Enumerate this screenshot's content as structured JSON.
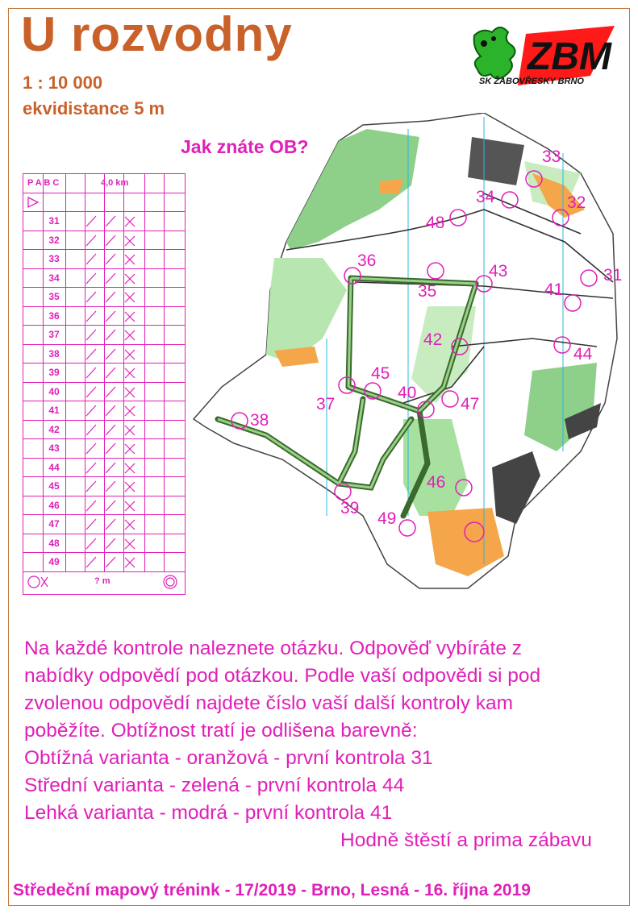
{
  "header": {
    "title": "U rozvodny",
    "scale": "1 : 10 000",
    "contour_interval": "ekvidistance 5 m",
    "question": "Jak znáte OB?"
  },
  "logo": {
    "text": "ZBM",
    "club": "SK ŽABOVŘESKY BRNO"
  },
  "control_description": {
    "head_classes": "P A B C",
    "head_length": "4,0 km",
    "rows": [
      "31",
      "32",
      "33",
      "34",
      "35",
      "36",
      "37",
      "38",
      "39",
      "40",
      "41",
      "42",
      "43",
      "44",
      "45",
      "46",
      "47",
      "48",
      "49"
    ],
    "finish_distance": "? m"
  },
  "map": {
    "controls": [
      {
        "num": "33"
      },
      {
        "num": "34"
      },
      {
        "num": "32"
      },
      {
        "num": "48"
      },
      {
        "num": "36"
      },
      {
        "num": "43"
      },
      {
        "num": "35"
      },
      {
        "num": "31"
      },
      {
        "num": "41"
      },
      {
        "num": "42"
      },
      {
        "num": "44"
      },
      {
        "num": "45"
      },
      {
        "num": "40"
      },
      {
        "num": "37"
      },
      {
        "num": "47"
      },
      {
        "num": "38"
      },
      {
        "num": "46"
      },
      {
        "num": "39"
      },
      {
        "num": "49"
      }
    ]
  },
  "instructions": {
    "lines": [
      "Na každé kontrole naleznete otázku. Odpověď vybíráte z",
      "nabídky odpovědí pod otázkou. Podle vaší odpovědi si pod",
      "zvolenou odpovědí najdete číslo vaší další kontroly kam",
      "poběžíte. Obtížnost tratí je odlišena barevně:",
      "Obtížná varianta - oranžová - první kontrola 31",
      "Střední varianta - zelená - první kontrola 44",
      "Lehká varianta - modrá - první kontrola 41"
    ],
    "closing": "Hodně štěstí a prima zábavu"
  },
  "footer": "Středeční mapový trénink - 17/2019 - Brno, Lesná - 16. října 2019",
  "colors": {
    "magenta": "#e020b8",
    "title_brown": "#c8622a",
    "green": "#3cb828",
    "orange": "#f5a64a"
  }
}
